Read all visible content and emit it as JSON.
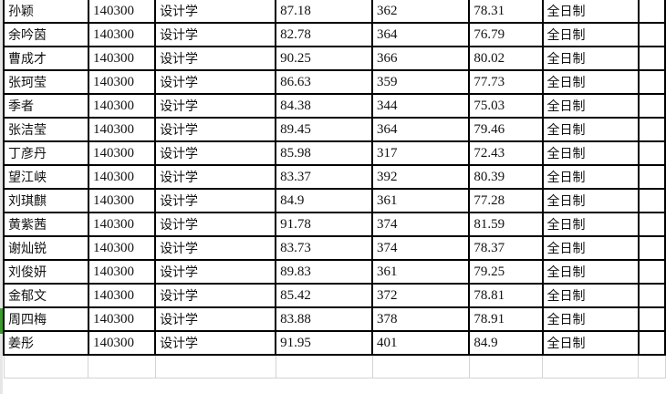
{
  "rows": [
    [
      "孙颖",
      "140300",
      "设计学",
      "87.18",
      "362",
      "78.31",
      "全日制"
    ],
    [
      "余吟茵",
      "140300",
      "设计学",
      "82.78",
      "364",
      "76.79",
      "全日制"
    ],
    [
      "曹成才",
      "140300",
      "设计学",
      "90.25",
      "366",
      "80.02",
      "全日制"
    ],
    [
      "张珂莹",
      "140300",
      "设计学",
      "86.63",
      "359",
      "77.73",
      "全日制"
    ],
    [
      "季者",
      "140300",
      "设计学",
      "84.38",
      "344",
      "75.03",
      "全日制"
    ],
    [
      "张洁莹",
      "140300",
      "设计学",
      "89.45",
      "364",
      "79.46",
      "全日制"
    ],
    [
      "丁彦丹",
      "140300",
      "设计学",
      "85.98",
      "317",
      "72.43",
      "全日制"
    ],
    [
      "望江峡",
      "140300",
      "设计学",
      "83.37",
      "392",
      "80.39",
      "全日制"
    ],
    [
      "刘琪麒",
      "140300",
      "设计学",
      "84.9",
      "361",
      "77.28",
      "全日制"
    ],
    [
      "黄紫茜",
      "140300",
      "设计学",
      "91.78",
      "374",
      "81.59",
      "全日制"
    ],
    [
      "谢灿锐",
      "140300",
      "设计学",
      "83.73",
      "374",
      "78.37",
      "全日制"
    ],
    [
      "刘俊妍",
      "140300",
      "设计学",
      "89.83",
      "361",
      "79.25",
      "全日制"
    ],
    [
      "金郁文",
      "140300",
      "设计学",
      "85.42",
      "372",
      "78.81",
      "全日制"
    ],
    [
      "周四梅",
      "140300",
      "设计学",
      "83.88",
      "378",
      "78.91",
      "全日制"
    ],
    [
      "姜彤",
      "140300",
      "设计学",
      "91.95",
      "401",
      "84.9",
      "全日制"
    ]
  ],
  "colors": {
    "selected_row_marker": "#3c9a2e"
  }
}
